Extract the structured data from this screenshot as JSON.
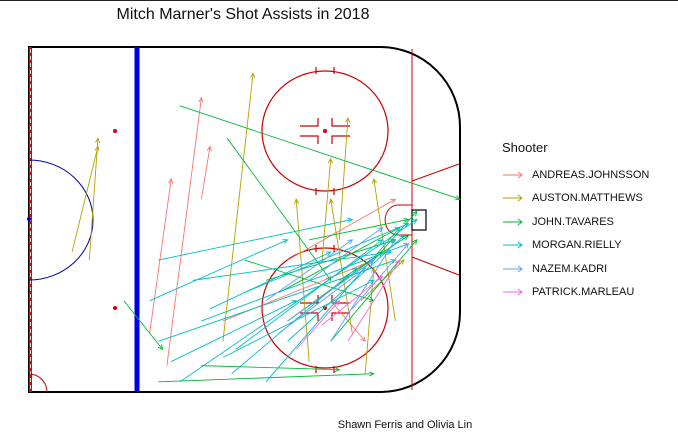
{
  "title": "Mitch Marner's Shot Assists in 2018",
  "caption": "Shawn Ferris and Olivia Lin",
  "chart_data": {
    "type": "scatter",
    "title": "Mitch Marner's Shot Assists in 2018",
    "xlabel": "",
    "ylabel": "",
    "legend_title": "Shooter",
    "legend_position": "right",
    "grid": false,
    "xlim": [
      0,
      100
    ],
    "ylim": [
      -42.5,
      42.5
    ],
    "series": [
      {
        "name": "ANDREAS.JOHNSSON",
        "color": "#F8766D",
        "arrows": [
          [
            28,
            -28,
            33,
            10
          ],
          [
            32,
            -36,
            40,
            30
          ],
          [
            45,
            -25,
            80,
            -10
          ],
          [
            60,
            -10,
            85,
            5
          ],
          [
            70,
            -20,
            78,
            -30
          ],
          [
            40,
            5,
            42,
            18
          ]
        ]
      },
      {
        "name": "AUSTON.MATTHEWS",
        "color": "#B79F00",
        "arrows": [
          [
            14,
            -10,
            16,
            20
          ],
          [
            10,
            -8,
            16,
            18
          ],
          [
            45,
            -30,
            52,
            36
          ],
          [
            75,
            -28,
            70,
            5
          ],
          [
            78,
            -38,
            80,
            -12
          ],
          [
            72,
            -5,
            74,
            25
          ],
          [
            85,
            -25,
            80,
            10
          ],
          [
            65,
            -35,
            62,
            5
          ],
          [
            77,
            -20,
            87,
            -10
          ],
          [
            68,
            -10,
            70,
            15
          ]
        ]
      },
      {
        "name": "JOHN.TAVARES",
        "color": "#00BA38",
        "arrows": [
          [
            22,
            -20,
            31,
            -32
          ],
          [
            35,
            28,
            100,
            5
          ],
          [
            30,
            -40,
            80,
            -38
          ],
          [
            55,
            -15,
            85,
            -5
          ],
          [
            70,
            -30,
            90,
            -5
          ],
          [
            65,
            -5,
            88,
            0
          ],
          [
            50,
            -10,
            80,
            -20
          ],
          [
            80,
            -10,
            90,
            2
          ],
          [
            60,
            -25,
            82,
            -8
          ],
          [
            72,
            -15,
            88,
            -4
          ],
          [
            40,
            -36,
            72,
            -37
          ],
          [
            58,
            -18,
            86,
            -2
          ],
          [
            46,
            20,
            70,
            -15
          ]
        ]
      },
      {
        "name": "MORGAN.RIELLY",
        "color": "#00BFC4",
        "arrows": [
          [
            30,
            -30,
            85,
            -10
          ],
          [
            28,
            -20,
            60,
            -5
          ],
          [
            35,
            -40,
            90,
            0
          ],
          [
            40,
            -25,
            88,
            -6
          ],
          [
            45,
            -34,
            80,
            -15
          ],
          [
            30,
            -10,
            75,
            0
          ],
          [
            38,
            -15,
            84,
            -8
          ],
          [
            48,
            -32,
            82,
            -5
          ],
          [
            55,
            -40,
            86,
            -2
          ],
          [
            42,
            -22,
            70,
            -8
          ],
          [
            60,
            -30,
            87,
            -4
          ],
          [
            33,
            -35,
            62,
            -20
          ],
          [
            50,
            -18,
            88,
            -1
          ],
          [
            47,
            -38,
            76,
            -12
          ]
        ]
      },
      {
        "name": "NAZEM.KADRI",
        "color": "#619CFF",
        "arrows": [
          [
            55,
            -20,
            75,
            -5
          ],
          [
            60,
            -25,
            80,
            -10
          ],
          [
            70,
            -30,
            85,
            -5
          ],
          [
            65,
            -15,
            82,
            -2
          ],
          [
            75,
            -22,
            88,
            -6
          ],
          [
            58,
            -28,
            78,
            -12
          ]
        ]
      },
      {
        "name": "PATRICK.MARLEAU",
        "color": "#F564E3",
        "arrows": [
          [
            62,
            -32,
            72,
            -20
          ],
          [
            68,
            -26,
            82,
            -14
          ],
          [
            74,
            -30,
            86,
            -10
          ]
        ]
      }
    ]
  }
}
